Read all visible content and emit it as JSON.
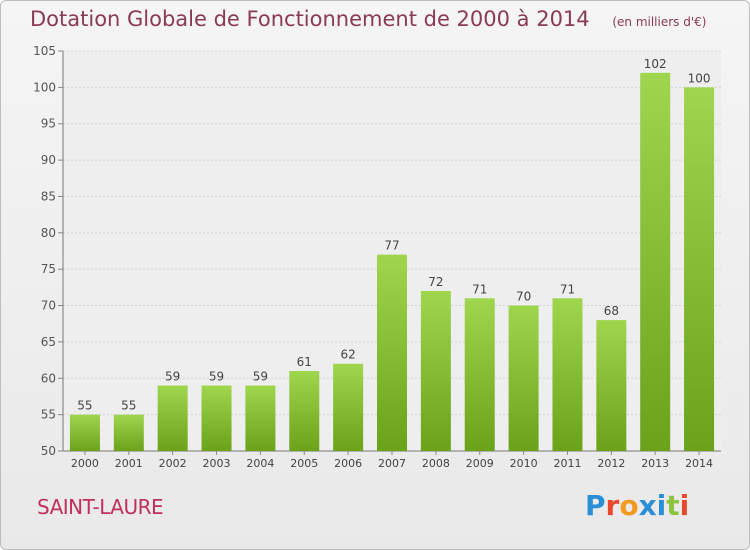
{
  "header": {
    "title": "Dotation Globale de Fonctionnement de 2000 à 2014",
    "unit": "(en milliers d'€)"
  },
  "footer": {
    "town": "SAINT-LAURE",
    "logo_letters": [
      "P",
      "r",
      "o",
      "x",
      "i",
      "t",
      "i"
    ],
    "logo_colors": [
      "#2a8fd6",
      "#e8492c",
      "#f29a1f",
      "#2a8fd6",
      "#2a8fd6",
      "#8bc43f",
      "#e8492c"
    ]
  },
  "chart_data": {
    "type": "bar",
    "title": "Dotation Globale de Fonctionnement de 2000 à 2014",
    "subtitle": "(en milliers d'€)",
    "categories": [
      "2000",
      "2001",
      "2002",
      "2003",
      "2004",
      "2005",
      "2006",
      "2007",
      "2008",
      "2009",
      "2010",
      "2011",
      "2012",
      "2013",
      "2014"
    ],
    "values": [
      55,
      55,
      59,
      59,
      59,
      61,
      62,
      77,
      72,
      71,
      70,
      71,
      68,
      102,
      100
    ],
    "ylim": [
      50,
      105
    ],
    "yticks": [
      50,
      55,
      60,
      65,
      70,
      75,
      80,
      85,
      90,
      95,
      100,
      105
    ],
    "grid": true,
    "bar_color_light": "#9fd64e",
    "bar_color_dark": "#6aa219"
  }
}
